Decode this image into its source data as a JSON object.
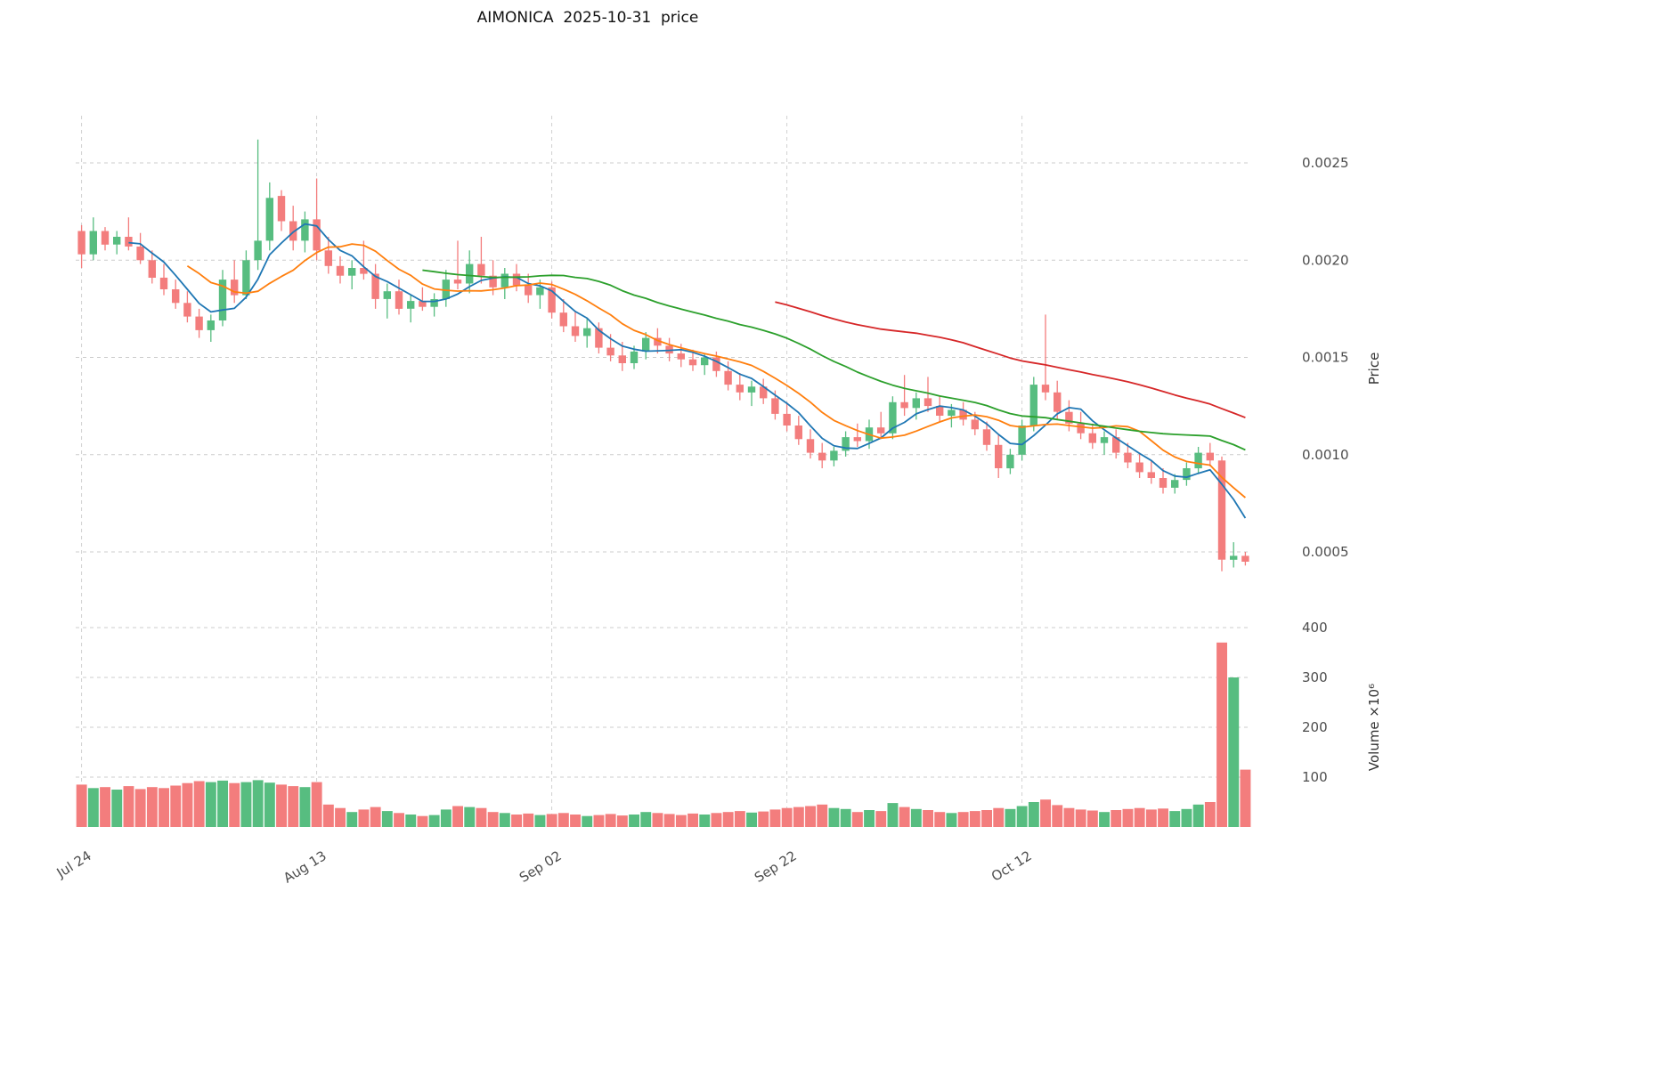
{
  "title": "AIMONICA  2025-10-31  price",
  "chart_data": {
    "type": "candlestick",
    "title": "AIMONICA  2025-10-31  price",
    "grid": true,
    "legend": "none",
    "x_axis": {
      "tick_labels": [
        "Jul 24",
        "Aug 13",
        "Sep 02",
        "Sep 22",
        "Oct 12"
      ],
      "tick_indices": [
        0,
        20,
        40,
        60,
        80
      ]
    },
    "price_axis": {
      "label": "Price",
      "ticks": [
        0.0005,
        0.001,
        0.0015,
        0.002,
        0.0025
      ],
      "range": [
        0.0003,
        0.00274
      ]
    },
    "volume_axis": {
      "label": "Volume ×10⁶",
      "ticks": [
        100,
        200,
        300,
        400
      ],
      "range": [
        0,
        400
      ]
    },
    "colors": {
      "up": "#57bd80",
      "down": "#f37d7d",
      "grid": "#cccccc",
      "ma_blue": "#1f77b4",
      "ma_orange": "#ff7f0e",
      "ma_green": "#2ca02c",
      "ma_red": "#d62728"
    },
    "moving_averages": [
      {
        "window": 5,
        "color": "#1f77b4"
      },
      {
        "window": 10,
        "color": "#ff7f0e"
      },
      {
        "window": 30,
        "color": "#2ca02c"
      },
      {
        "window": 60,
        "color": "#d62728"
      }
    ],
    "dates": [
      "2025-07-24",
      "2025-07-25",
      "2025-07-26",
      "2025-07-27",
      "2025-07-28",
      "2025-07-29",
      "2025-07-30",
      "2025-07-31",
      "2025-08-01",
      "2025-08-02",
      "2025-08-03",
      "2025-08-04",
      "2025-08-05",
      "2025-08-06",
      "2025-08-07",
      "2025-08-08",
      "2025-08-09",
      "2025-08-10",
      "2025-08-11",
      "2025-08-12",
      "2025-08-13",
      "2025-08-14",
      "2025-08-15",
      "2025-08-16",
      "2025-08-17",
      "2025-08-18",
      "2025-08-19",
      "2025-08-20",
      "2025-08-21",
      "2025-08-22",
      "2025-08-23",
      "2025-08-24",
      "2025-08-25",
      "2025-08-26",
      "2025-08-27",
      "2025-08-28",
      "2025-08-29",
      "2025-08-30",
      "2025-08-31",
      "2025-09-01",
      "2025-09-02",
      "2025-09-03",
      "2025-09-04",
      "2025-09-05",
      "2025-09-06",
      "2025-09-07",
      "2025-09-08",
      "2025-09-09",
      "2025-09-10",
      "2025-09-11",
      "2025-09-12",
      "2025-09-13",
      "2025-09-14",
      "2025-09-15",
      "2025-09-16",
      "2025-09-17",
      "2025-09-18",
      "2025-09-19",
      "2025-09-20",
      "2025-09-21",
      "2025-09-22",
      "2025-09-23",
      "2025-09-24",
      "2025-09-25",
      "2025-09-26",
      "2025-09-27",
      "2025-09-28",
      "2025-09-29",
      "2025-09-30",
      "2025-10-01",
      "2025-10-02",
      "2025-10-03",
      "2025-10-04",
      "2025-10-05",
      "2025-10-06",
      "2025-10-07",
      "2025-10-08",
      "2025-10-09",
      "2025-10-10",
      "2025-10-11",
      "2025-10-12",
      "2025-10-13",
      "2025-10-14",
      "2025-10-15",
      "2025-10-16",
      "2025-10-17",
      "2025-10-18",
      "2025-10-19",
      "2025-10-20",
      "2025-10-21",
      "2025-10-22",
      "2025-10-23",
      "2025-10-24",
      "2025-10-25",
      "2025-10-26",
      "2025-10-27",
      "2025-10-28",
      "2025-10-29",
      "2025-10-30",
      "2025-10-31"
    ],
    "ohlc": [
      [
        0.00215,
        0.00218,
        0.00196,
        0.00203
      ],
      [
        0.00203,
        0.00222,
        0.002,
        0.00215
      ],
      [
        0.00215,
        0.00217,
        0.00205,
        0.00208
      ],
      [
        0.00208,
        0.00215,
        0.00203,
        0.00212
      ],
      [
        0.00212,
        0.00222,
        0.00205,
        0.00207
      ],
      [
        0.00207,
        0.00214,
        0.00198,
        0.002
      ],
      [
        0.002,
        0.00205,
        0.00188,
        0.00191
      ],
      [
        0.00191,
        0.00198,
        0.00182,
        0.00185
      ],
      [
        0.00185,
        0.0019,
        0.00175,
        0.00178
      ],
      [
        0.00178,
        0.00184,
        0.00168,
        0.00171
      ],
      [
        0.00171,
        0.00175,
        0.0016,
        0.00164
      ],
      [
        0.00164,
        0.00172,
        0.00158,
        0.00169
      ],
      [
        0.00169,
        0.00195,
        0.00166,
        0.0019
      ],
      [
        0.0019,
        0.002,
        0.00178,
        0.00182
      ],
      [
        0.00182,
        0.00205,
        0.0018,
        0.002
      ],
      [
        0.002,
        0.00262,
        0.00195,
        0.0021
      ],
      [
        0.0021,
        0.0024,
        0.00205,
        0.00232
      ],
      [
        0.00233,
        0.00236,
        0.00215,
        0.0022
      ],
      [
        0.0022,
        0.00228,
        0.00205,
        0.0021
      ],
      [
        0.0021,
        0.00225,
        0.00204,
        0.00221
      ],
      [
        0.00221,
        0.00242,
        0.002,
        0.00205
      ],
      [
        0.00205,
        0.00212,
        0.00193,
        0.00197
      ],
      [
        0.00197,
        0.00202,
        0.00188,
        0.00192
      ],
      [
        0.00192,
        0.002,
        0.00185,
        0.00196
      ],
      [
        0.00196,
        0.0021,
        0.0019,
        0.00193
      ],
      [
        0.00193,
        0.00198,
        0.00175,
        0.0018
      ],
      [
        0.0018,
        0.00188,
        0.0017,
        0.00184
      ],
      [
        0.00184,
        0.0019,
        0.00172,
        0.00175
      ],
      [
        0.00175,
        0.00182,
        0.00168,
        0.00179
      ],
      [
        0.00179,
        0.00186,
        0.00174,
        0.00176
      ],
      [
        0.00176,
        0.00183,
        0.00171,
        0.0018
      ],
      [
        0.0018,
        0.00195,
        0.00176,
        0.0019
      ],
      [
        0.0019,
        0.0021,
        0.00185,
        0.00188
      ],
      [
        0.00188,
        0.00205,
        0.00183,
        0.00198
      ],
      [
        0.00198,
        0.00212,
        0.00188,
        0.00192
      ],
      [
        0.00192,
        0.002,
        0.00182,
        0.00186
      ],
      [
        0.00186,
        0.00196,
        0.0018,
        0.00193
      ],
      [
        0.00193,
        0.00198,
        0.00184,
        0.00187
      ],
      [
        0.00187,
        0.00193,
        0.00178,
        0.00182
      ],
      [
        0.00182,
        0.0019,
        0.00175,
        0.00186
      ],
      [
        0.00186,
        0.00189,
        0.0017,
        0.00173
      ],
      [
        0.00173,
        0.0018,
        0.00163,
        0.00166
      ],
      [
        0.00166,
        0.00174,
        0.00158,
        0.00161
      ],
      [
        0.00161,
        0.0017,
        0.00155,
        0.00165
      ],
      [
        0.00165,
        0.00168,
        0.00152,
        0.00155
      ],
      [
        0.00155,
        0.00162,
        0.00148,
        0.00151
      ],
      [
        0.00151,
        0.00158,
        0.00143,
        0.00147
      ],
      [
        0.00147,
        0.00156,
        0.00144,
        0.00153
      ],
      [
        0.00153,
        0.00163,
        0.00149,
        0.0016
      ],
      [
        0.0016,
        0.00165,
        0.00152,
        0.00156
      ],
      [
        0.00156,
        0.0016,
        0.00148,
        0.00152
      ],
      [
        0.00152,
        0.00157,
        0.00145,
        0.00149
      ],
      [
        0.00149,
        0.00154,
        0.00143,
        0.00146
      ],
      [
        0.00146,
        0.00152,
        0.00141,
        0.0015
      ],
      [
        0.0015,
        0.00153,
        0.0014,
        0.00143
      ],
      [
        0.00143,
        0.00148,
        0.00133,
        0.00136
      ],
      [
        0.00136,
        0.00142,
        0.00128,
        0.00132
      ],
      [
        0.00132,
        0.00138,
        0.00125,
        0.00135
      ],
      [
        0.00135,
        0.00139,
        0.00126,
        0.00129
      ],
      [
        0.00129,
        0.00133,
        0.00118,
        0.00121
      ],
      [
        0.00121,
        0.00127,
        0.00112,
        0.00115
      ],
      [
        0.00115,
        0.0012,
        0.00105,
        0.00108
      ],
      [
        0.00108,
        0.00113,
        0.00098,
        0.00101
      ],
      [
        0.00101,
        0.00106,
        0.00093,
        0.00097
      ],
      [
        0.00097,
        0.00104,
        0.00094,
        0.00102
      ],
      [
        0.00102,
        0.00112,
        0.00099,
        0.00109
      ],
      [
        0.00109,
        0.00116,
        0.00104,
        0.00107
      ],
      [
        0.00107,
        0.00118,
        0.00103,
        0.00114
      ],
      [
        0.00114,
        0.00122,
        0.00108,
        0.00111
      ],
      [
        0.00111,
        0.0013,
        0.00108,
        0.00127
      ],
      [
        0.00127,
        0.00141,
        0.0012,
        0.00124
      ],
      [
        0.00124,
        0.00132,
        0.00118,
        0.00129
      ],
      [
        0.00129,
        0.0014,
        0.00122,
        0.00125
      ],
      [
        0.00125,
        0.0013,
        0.00117,
        0.0012
      ],
      [
        0.0012,
        0.00126,
        0.00114,
        0.00123
      ],
      [
        0.00123,
        0.00127,
        0.00115,
        0.00118
      ],
      [
        0.00118,
        0.00122,
        0.0011,
        0.00113
      ],
      [
        0.00113,
        0.00117,
        0.00102,
        0.00105
      ],
      [
        0.00105,
        0.0011,
        0.00088,
        0.00093
      ],
      [
        0.00093,
        0.00103,
        0.0009,
        0.001
      ],
      [
        0.001,
        0.00118,
        0.00097,
        0.00115
      ],
      [
        0.00115,
        0.0014,
        0.00112,
        0.00136
      ],
      [
        0.00136,
        0.00172,
        0.00128,
        0.00132
      ],
      [
        0.00132,
        0.00138,
        0.00118,
        0.00122
      ],
      [
        0.00122,
        0.00128,
        0.00112,
        0.00116
      ],
      [
        0.00116,
        0.00122,
        0.00108,
        0.00111
      ],
      [
        0.00111,
        0.00116,
        0.00103,
        0.00106
      ],
      [
        0.00106,
        0.00112,
        0.001,
        0.00109
      ],
      [
        0.00109,
        0.00113,
        0.00098,
        0.00101
      ],
      [
        0.00101,
        0.00106,
        0.00093,
        0.00096
      ],
      [
        0.00096,
        0.00101,
        0.00088,
        0.00091
      ],
      [
        0.00091,
        0.00097,
        0.00085,
        0.00088
      ],
      [
        0.00088,
        0.00093,
        0.0008,
        0.00083
      ],
      [
        0.00083,
        0.0009,
        0.0008,
        0.00087
      ],
      [
        0.00087,
        0.00096,
        0.00084,
        0.00093
      ],
      [
        0.00093,
        0.00104,
        0.0009,
        0.00101
      ],
      [
        0.00101,
        0.00106,
        0.00094,
        0.00097
      ],
      [
        0.00097,
        0.00099,
        0.0004,
        0.00046
      ],
      [
        0.00046,
        0.00055,
        0.00042,
        0.00048
      ],
      [
        0.00048,
        0.0005,
        0.00043,
        0.00045
      ]
    ],
    "volume": [
      85,
      78,
      80,
      75,
      82,
      76,
      80,
      78,
      83,
      88,
      92,
      90,
      93,
      88,
      90,
      94,
      89,
      85,
      82,
      80,
      90,
      45,
      38,
      30,
      35,
      40,
      32,
      28,
      25,
      22,
      24,
      35,
      42,
      40,
      38,
      30,
      28,
      25,
      27,
      24,
      26,
      28,
      25,
      22,
      24,
      26,
      23,
      25,
      30,
      28,
      26,
      24,
      27,
      25,
      28,
      30,
      32,
      29,
      31,
      35,
      38,
      40,
      42,
      45,
      38,
      36,
      30,
      34,
      32,
      48,
      40,
      36,
      34,
      30,
      28,
      30,
      32,
      34,
      38,
      36,
      42,
      50,
      55,
      44,
      38,
      35,
      33,
      30,
      34,
      36,
      38,
      35,
      37,
      32,
      36,
      45,
      50,
      370,
      300,
      115
    ]
  }
}
